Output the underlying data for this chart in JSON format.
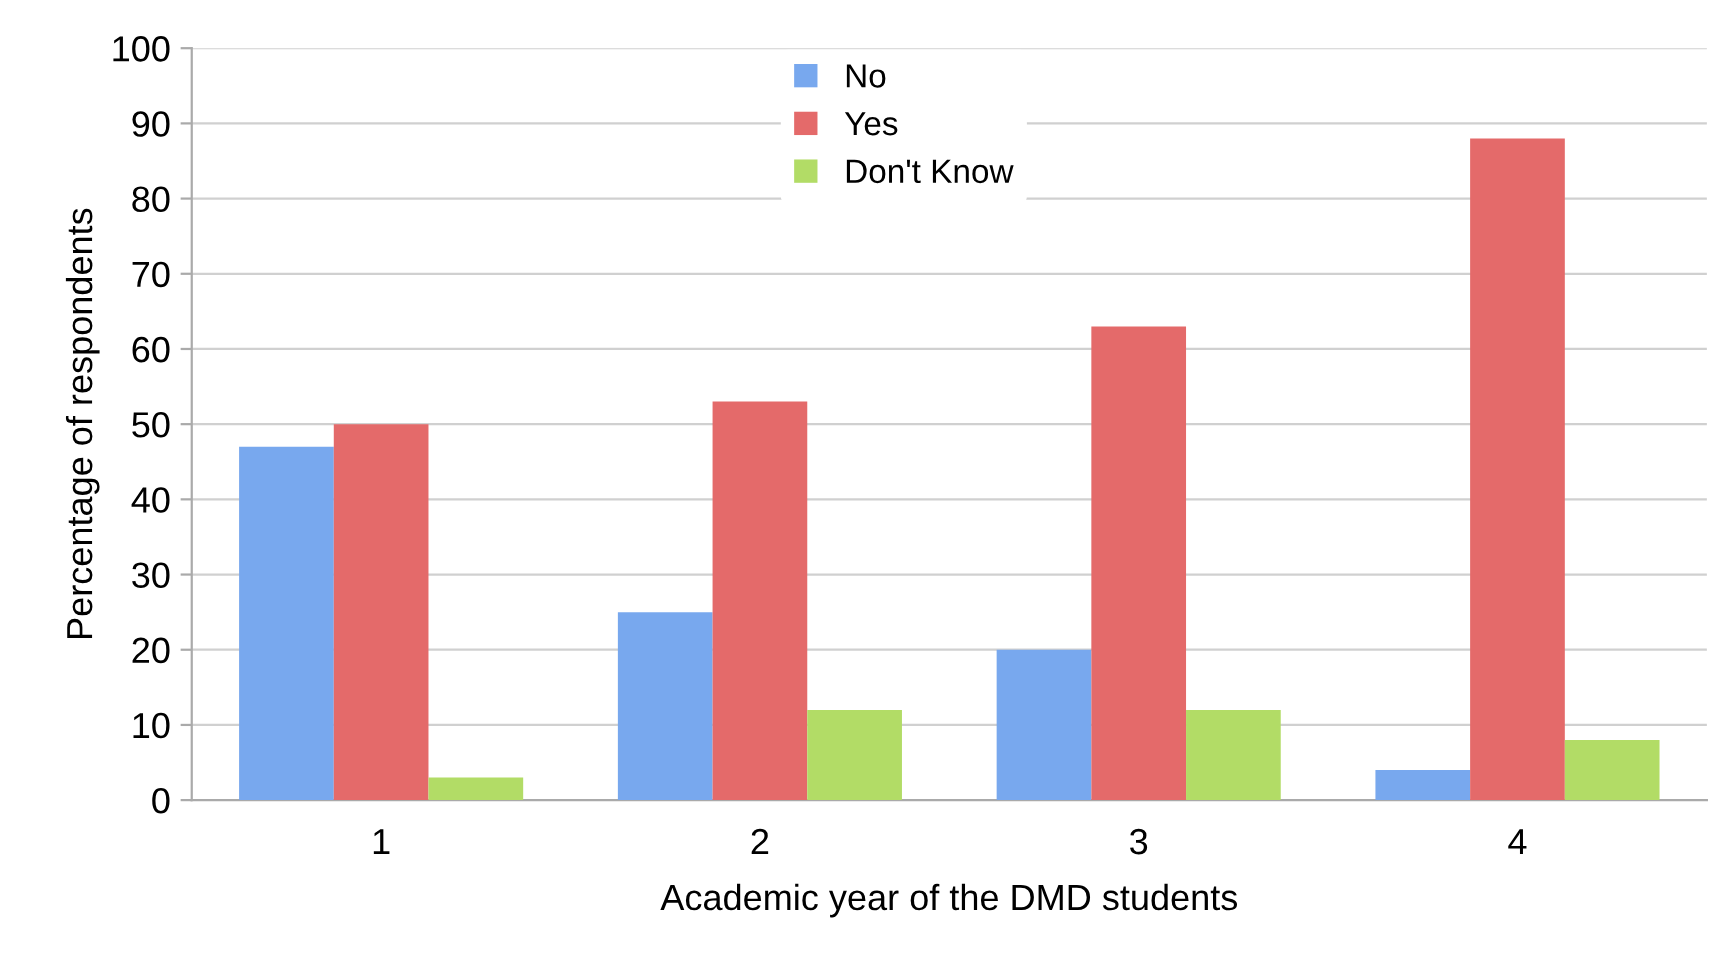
{
  "chart_data": {
    "type": "bar",
    "xlabel": "Academic year of the DMD students",
    "ylabel": "Percentage of respondents",
    "categories": [
      "1",
      "2",
      "3",
      "4"
    ],
    "series": [
      {
        "name": "No",
        "color": "#78a8ee",
        "values": [
          47,
          25,
          20,
          4
        ]
      },
      {
        "name": "Yes",
        "color": "#e46a6a",
        "values": [
          50,
          53,
          63,
          88
        ]
      },
      {
        "name": "Don't Know",
        "color": "#b2dc66",
        "values": [
          3,
          12,
          12,
          8
        ]
      }
    ],
    "ylim": [
      0,
      100
    ],
    "yticks": [
      0,
      10,
      20,
      30,
      40,
      50,
      60,
      70,
      80,
      90,
      100
    ],
    "grid": "y",
    "legend": "top"
  }
}
